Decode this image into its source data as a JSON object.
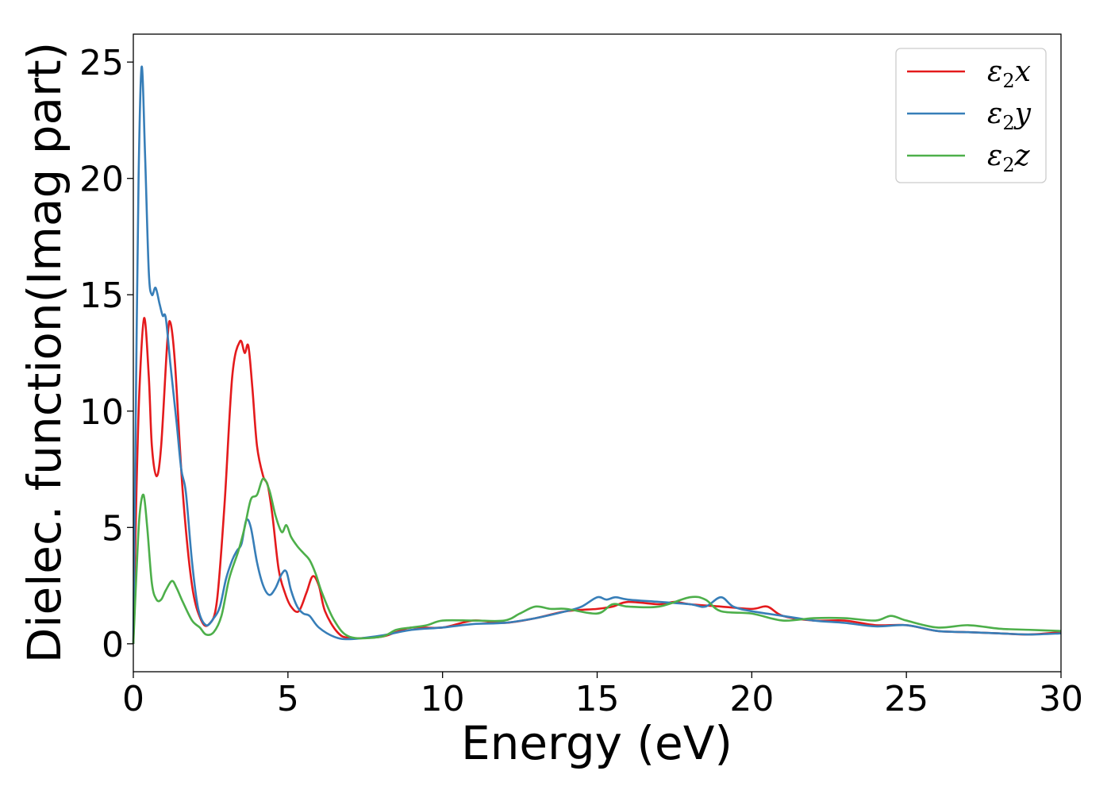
{
  "chart_data": {
    "type": "line",
    "xlabel": "Energy (eV)",
    "ylabel": "Dielec. function(Imag part)",
    "xlim": [
      0,
      30
    ],
    "ylim": [
      -1.2,
      26.2
    ],
    "xticks": [
      "0",
      "5",
      "10",
      "15",
      "20",
      "25",
      "30"
    ],
    "yticks": [
      "0",
      "5",
      "10",
      "15",
      "20",
      "25"
    ],
    "grid": false,
    "legend_position": "top-right",
    "series": [
      {
        "name": "ε2x",
        "legend_main": "ε",
        "legend_sub": "2",
        "legend_tail": "x",
        "color": "#e41a1c",
        "points": [
          [
            0,
            0
          ],
          [
            0.1,
            6.5
          ],
          [
            0.2,
            11
          ],
          [
            0.35,
            14
          ],
          [
            0.5,
            11.5
          ],
          [
            0.6,
            8.5
          ],
          [
            0.75,
            7.2
          ],
          [
            0.9,
            8.5
          ],
          [
            1.1,
            13
          ],
          [
            1.2,
            13.8
          ],
          [
            1.35,
            12
          ],
          [
            1.6,
            6.5
          ],
          [
            1.9,
            2.5
          ],
          [
            2.2,
            1.0
          ],
          [
            2.45,
            0.85
          ],
          [
            2.7,
            1.8
          ],
          [
            2.95,
            6
          ],
          [
            3.2,
            11.5
          ],
          [
            3.45,
            13.0
          ],
          [
            3.6,
            12.5
          ],
          [
            3.72,
            12.8
          ],
          [
            3.85,
            11
          ],
          [
            4.0,
            8.5
          ],
          [
            4.2,
            7.2
          ],
          [
            4.35,
            6.8
          ],
          [
            4.5,
            5.5
          ],
          [
            4.7,
            3.2
          ],
          [
            4.9,
            2.2
          ],
          [
            5.1,
            1.6
          ],
          [
            5.35,
            1.4
          ],
          [
            5.6,
            2.2
          ],
          [
            5.8,
            2.9
          ],
          [
            6.0,
            2.5
          ],
          [
            6.2,
            1.4
          ],
          [
            6.6,
            0.5
          ],
          [
            7,
            0.25
          ],
          [
            8,
            0.3
          ],
          [
            8.5,
            0.5
          ],
          [
            9,
            0.7
          ],
          [
            10,
            0.7
          ],
          [
            11,
            1.0
          ],
          [
            12,
            0.9
          ],
          [
            13,
            1.1
          ],
          [
            14,
            1.4
          ],
          [
            15,
            1.5
          ],
          [
            15.5,
            1.6
          ],
          [
            16,
            1.8
          ],
          [
            17,
            1.7
          ],
          [
            17.5,
            1.8
          ],
          [
            18,
            1.7
          ],
          [
            19,
            1.6
          ],
          [
            20,
            1.5
          ],
          [
            20.5,
            1.6
          ],
          [
            21,
            1.2
          ],
          [
            22,
            1.0
          ],
          [
            23,
            1.0
          ],
          [
            24,
            0.8
          ],
          [
            25,
            0.8
          ],
          [
            26,
            0.55
          ],
          [
            27,
            0.5
          ],
          [
            28,
            0.45
          ],
          [
            29,
            0.4
          ],
          [
            30,
            0.5
          ]
        ]
      },
      {
        "name": "ε2y",
        "legend_main": "ε",
        "legend_sub": "2",
        "legend_tail": "y",
        "color": "#377eb8",
        "points": [
          [
            0,
            0
          ],
          [
            0.08,
            10
          ],
          [
            0.17,
            20
          ],
          [
            0.27,
            24.8
          ],
          [
            0.38,
            21
          ],
          [
            0.5,
            16
          ],
          [
            0.6,
            15.0
          ],
          [
            0.72,
            15.3
          ],
          [
            0.85,
            14.6
          ],
          [
            0.95,
            14.1
          ],
          [
            1.05,
            14.0
          ],
          [
            1.2,
            12
          ],
          [
            1.4,
            9.5
          ],
          [
            1.55,
            7.5
          ],
          [
            1.7,
            6.5
          ],
          [
            1.9,
            3.5
          ],
          [
            2.1,
            1.5
          ],
          [
            2.35,
            0.8
          ],
          [
            2.6,
            1.1
          ],
          [
            2.8,
            1.6
          ],
          [
            3.0,
            2.8
          ],
          [
            3.2,
            3.6
          ],
          [
            3.35,
            4.0
          ],
          [
            3.5,
            4.3
          ],
          [
            3.65,
            5.3
          ],
          [
            3.8,
            5.0
          ],
          [
            4.0,
            3.5
          ],
          [
            4.2,
            2.5
          ],
          [
            4.4,
            2.1
          ],
          [
            4.6,
            2.4
          ],
          [
            4.8,
            3.0
          ],
          [
            4.95,
            3.1
          ],
          [
            5.1,
            2.3
          ],
          [
            5.3,
            1.6
          ],
          [
            5.5,
            1.3
          ],
          [
            5.7,
            1.2
          ],
          [
            6.0,
            0.7
          ],
          [
            6.5,
            0.3
          ],
          [
            7,
            0.2
          ],
          [
            8,
            0.35
          ],
          [
            9,
            0.6
          ],
          [
            10,
            0.7
          ],
          [
            11,
            0.85
          ],
          [
            12,
            0.9
          ],
          [
            13,
            1.1
          ],
          [
            14,
            1.4
          ],
          [
            14.5,
            1.6
          ],
          [
            15,
            2.0
          ],
          [
            15.3,
            1.9
          ],
          [
            15.6,
            2.0
          ],
          [
            16,
            1.9
          ],
          [
            17,
            1.8
          ],
          [
            18,
            1.7
          ],
          [
            18.5,
            1.6
          ],
          [
            19,
            2.0
          ],
          [
            19.4,
            1.6
          ],
          [
            20,
            1.4
          ],
          [
            21,
            1.2
          ],
          [
            22,
            1.0
          ],
          [
            23,
            0.9
          ],
          [
            24,
            0.75
          ],
          [
            25,
            0.8
          ],
          [
            26,
            0.55
          ],
          [
            27,
            0.5
          ],
          [
            28,
            0.45
          ],
          [
            29,
            0.4
          ],
          [
            30,
            0.45
          ]
        ]
      },
      {
        "name": "ε2z",
        "legend_main": "ε",
        "legend_sub": "2",
        "legend_tail": "z",
        "color": "#4daf4a",
        "points": [
          [
            0,
            0
          ],
          [
            0.1,
            3
          ],
          [
            0.2,
            5.5
          ],
          [
            0.33,
            6.4
          ],
          [
            0.45,
            5
          ],
          [
            0.6,
            2.6
          ],
          [
            0.75,
            1.9
          ],
          [
            0.9,
            1.9
          ],
          [
            1.05,
            2.3
          ],
          [
            1.25,
            2.7
          ],
          [
            1.4,
            2.4
          ],
          [
            1.6,
            1.8
          ],
          [
            1.9,
            1.0
          ],
          [
            2.15,
            0.7
          ],
          [
            2.35,
            0.4
          ],
          [
            2.6,
            0.5
          ],
          [
            2.85,
            1.2
          ],
          [
            3.1,
            2.8
          ],
          [
            3.4,
            4.0
          ],
          [
            3.6,
            5.0
          ],
          [
            3.8,
            6.2
          ],
          [
            4.0,
            6.4
          ],
          [
            4.2,
            7.1
          ],
          [
            4.4,
            6.6
          ],
          [
            4.6,
            5.5
          ],
          [
            4.8,
            4.8
          ],
          [
            4.95,
            5.1
          ],
          [
            5.1,
            4.6
          ],
          [
            5.3,
            4.2
          ],
          [
            5.5,
            3.9
          ],
          [
            5.7,
            3.6
          ],
          [
            5.9,
            3.0
          ],
          [
            6.1,
            2.2
          ],
          [
            6.5,
            1.0
          ],
          [
            7,
            0.3
          ],
          [
            8,
            0.3
          ],
          [
            8.5,
            0.6
          ],
          [
            9,
            0.7
          ],
          [
            9.5,
            0.8
          ],
          [
            10,
            1.0
          ],
          [
            11,
            1.0
          ],
          [
            12,
            1.0
          ],
          [
            12.5,
            1.3
          ],
          [
            13,
            1.6
          ],
          [
            13.5,
            1.5
          ],
          [
            14,
            1.5
          ],
          [
            15,
            1.3
          ],
          [
            15.5,
            1.7
          ],
          [
            16,
            1.6
          ],
          [
            17,
            1.6
          ],
          [
            18,
            2.0
          ],
          [
            18.5,
            1.9
          ],
          [
            19,
            1.4
          ],
          [
            20,
            1.3
          ],
          [
            21,
            1.0
          ],
          [
            22,
            1.1
          ],
          [
            23,
            1.1
          ],
          [
            24,
            1.0
          ],
          [
            24.5,
            1.2
          ],
          [
            25,
            1.0
          ],
          [
            26,
            0.7
          ],
          [
            27,
            0.8
          ],
          [
            28,
            0.65
          ],
          [
            29,
            0.6
          ],
          [
            30,
            0.55
          ]
        ]
      }
    ]
  }
}
